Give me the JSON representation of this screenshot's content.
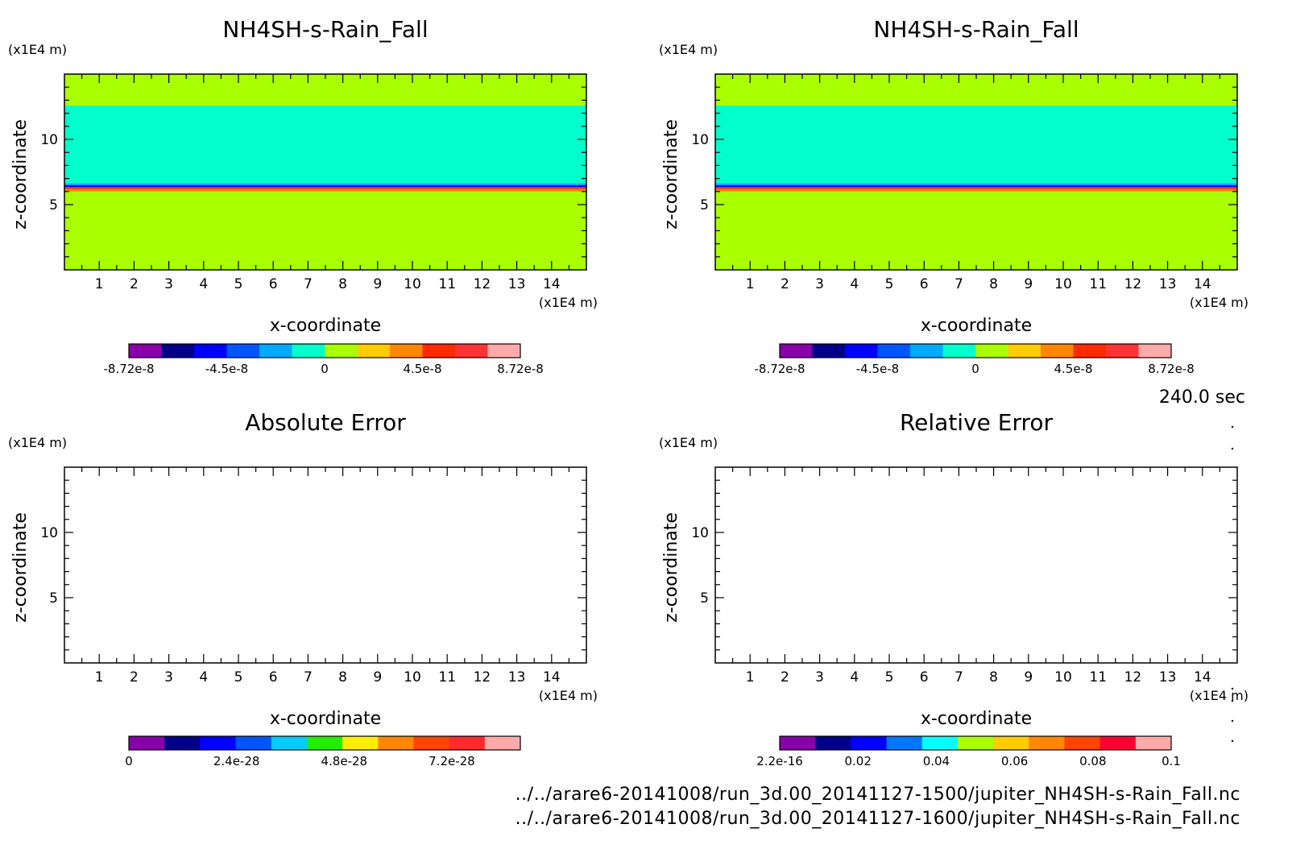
{
  "time_label": "240.0 sec",
  "files": [
    "../../arare6-20141008/run_3d.00_20141127-1500/jupiter_NH4SH-s-Rain_Fall.nc",
    "../../arare6-20141008/run_3d.00_20141127-1600/jupiter_NH4SH-s-Rain_Fall.nc"
  ],
  "chart_data": [
    {
      "type": "heatmap",
      "title": "NH4SH-s-Rain_Fall",
      "xlabel": "x-coordinate",
      "ylabel": "z-coordinate",
      "x_unit": "(x1E4 m)",
      "y_unit": "(x1E4 m)",
      "xlim": [
        0,
        15
      ],
      "ylim": [
        0,
        15
      ],
      "x_ticks": [
        1,
        2,
        3,
        4,
        5,
        6,
        7,
        8,
        9,
        10,
        11,
        12,
        13,
        14
      ],
      "y_ticks": [
        5,
        10
      ],
      "bands": [
        {
          "z_from": 0,
          "z_to": 6.0,
          "value": 2e-09,
          "color": "#aaff00"
        },
        {
          "z_from": 6.0,
          "z_to": 6.2,
          "value": 4e-08,
          "color": "#ff8800"
        },
        {
          "z_from": 6.2,
          "z_to": 6.35,
          "value": 6e-08,
          "color": "#ff2a00"
        },
        {
          "z_from": 6.35,
          "z_to": 6.5,
          "value": -6e-08,
          "color": "#0000ff"
        },
        {
          "z_from": 6.5,
          "z_to": 6.65,
          "value": -2e-08,
          "color": "#00aaff"
        },
        {
          "z_from": 6.65,
          "z_to": 12.6,
          "value": -2e-09,
          "color": "#00ffcc"
        },
        {
          "z_from": 12.6,
          "z_to": 15,
          "value": 1e-10,
          "color": "#aaff00"
        }
      ],
      "colorbar": {
        "colors": [
          "#8800aa",
          "#000088",
          "#0000ff",
          "#0055ff",
          "#00aaff",
          "#00ffcc",
          "#aaff00",
          "#ffcc00",
          "#ff8800",
          "#ff2a00",
          "#ff3333",
          "#ffaaaa"
        ],
        "labels": [
          {
            "text": "-8.72e-8",
            "pos": 0
          },
          {
            "text": "-4.5e-8",
            "pos": 0.25
          },
          {
            "text": "0",
            "pos": 0.5
          },
          {
            "text": "4.5e-8",
            "pos": 0.75
          },
          {
            "text": "8.72e-8",
            "pos": 1
          }
        ]
      }
    },
    {
      "type": "heatmap",
      "title": "NH4SH-s-Rain_Fall",
      "xlabel": "x-coordinate",
      "ylabel": "z-coordinate",
      "x_unit": "(x1E4 m)",
      "y_unit": "(x1E4 m)",
      "xlim": [
        0,
        15
      ],
      "ylim": [
        0,
        15
      ],
      "x_ticks": [
        1,
        2,
        3,
        4,
        5,
        6,
        7,
        8,
        9,
        10,
        11,
        12,
        13,
        14
      ],
      "y_ticks": [
        5,
        10
      ],
      "bands": [
        {
          "z_from": 0,
          "z_to": 6.0,
          "value": 2e-09,
          "color": "#aaff00"
        },
        {
          "z_from": 6.0,
          "z_to": 6.2,
          "value": 4e-08,
          "color": "#ff8800"
        },
        {
          "z_from": 6.2,
          "z_to": 6.35,
          "value": 6e-08,
          "color": "#ff2a00"
        },
        {
          "z_from": 6.35,
          "z_to": 6.5,
          "value": -6e-08,
          "color": "#0000ff"
        },
        {
          "z_from": 6.5,
          "z_to": 6.65,
          "value": -2e-08,
          "color": "#00aaff"
        },
        {
          "z_from": 6.65,
          "z_to": 12.6,
          "value": -2e-09,
          "color": "#00ffcc"
        },
        {
          "z_from": 12.6,
          "z_to": 15,
          "value": 1e-10,
          "color": "#aaff00"
        }
      ],
      "colorbar": {
        "colors": [
          "#8800aa",
          "#000088",
          "#0000ff",
          "#0055ff",
          "#00aaff",
          "#00ffcc",
          "#aaff00",
          "#ffcc00",
          "#ff8800",
          "#ff2a00",
          "#ff3333",
          "#ffaaaa"
        ],
        "labels": [
          {
            "text": "-8.72e-8",
            "pos": 0
          },
          {
            "text": "-4.5e-8",
            "pos": 0.25
          },
          {
            "text": "0",
            "pos": 0.5
          },
          {
            "text": "4.5e-8",
            "pos": 0.75
          },
          {
            "text": "8.72e-8",
            "pos": 1
          }
        ]
      }
    },
    {
      "type": "heatmap",
      "title": "Absolute Error",
      "xlabel": "x-coordinate",
      "ylabel": "z-coordinate",
      "x_unit": "(x1E4 m)",
      "y_unit": "(x1E4 m)",
      "xlim": [
        0,
        15
      ],
      "ylim": [
        0,
        15
      ],
      "x_ticks": [
        1,
        2,
        3,
        4,
        5,
        6,
        7,
        8,
        9,
        10,
        11,
        12,
        13,
        14
      ],
      "y_ticks": [
        5,
        10
      ],
      "bands": [],
      "colorbar": {
        "colors": [
          "#8800aa",
          "#000088",
          "#0000ff",
          "#0055ff",
          "#00ccff",
          "#22ee00",
          "#ffee00",
          "#ff8800",
          "#ff4400",
          "#ff2a2a",
          "#ffaaaa"
        ],
        "labels": [
          {
            "text": "0",
            "pos": 0
          },
          {
            "text": "2.4e-28",
            "pos": 0.275
          },
          {
            "text": "4.8e-28",
            "pos": 0.55
          },
          {
            "text": "7.2e-28",
            "pos": 0.825
          }
        ]
      }
    },
    {
      "type": "heatmap",
      "title": "Relative Error",
      "xlabel": "x-coordinate",
      "ylabel": "z-coordinate",
      "x_unit": "(x1E4 m)",
      "y_unit": "(x1E4 m)",
      "xlim": [
        0,
        15
      ],
      "ylim": [
        0,
        15
      ],
      "x_ticks": [
        1,
        2,
        3,
        4,
        5,
        6,
        7,
        8,
        9,
        10,
        11,
        12,
        13,
        14
      ],
      "y_ticks": [
        5,
        10
      ],
      "bands": [],
      "colorbar": {
        "colors": [
          "#8800aa",
          "#000088",
          "#0000ff",
          "#0077ff",
          "#00ffff",
          "#aaff00",
          "#ffcc00",
          "#ff8800",
          "#ff4400",
          "#ff0033",
          "#ffaaaa"
        ],
        "labels": [
          {
            "text": "2.2e-16",
            "pos": 0
          },
          {
            "text": "0.02",
            "pos": 0.2
          },
          {
            "text": "0.04",
            "pos": 0.4
          },
          {
            "text": "0.06",
            "pos": 0.6
          },
          {
            "text": "0.08",
            "pos": 0.8
          },
          {
            "text": "0.1",
            "pos": 1
          }
        ]
      }
    }
  ]
}
